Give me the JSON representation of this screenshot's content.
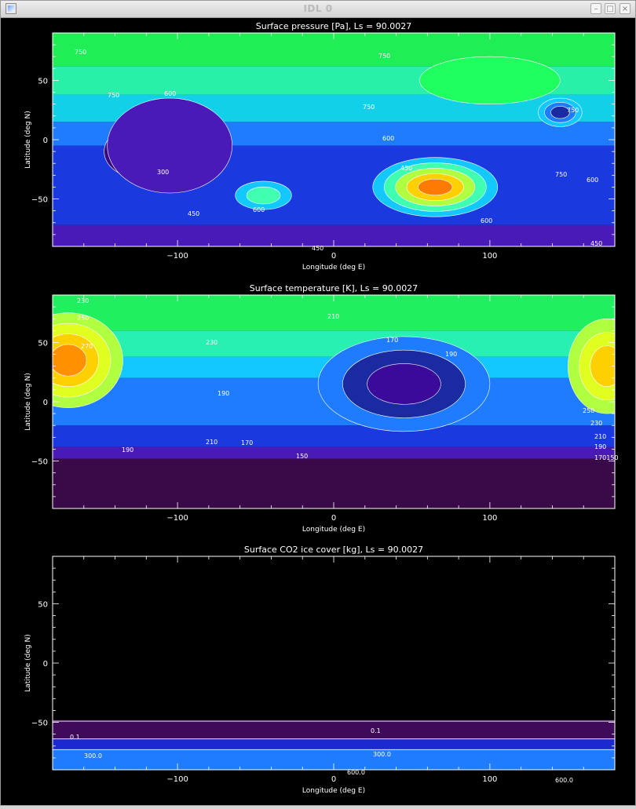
{
  "window": {
    "title": "IDL 0",
    "buttons": {
      "minimize": "–",
      "maximize": "□",
      "close": "×"
    }
  },
  "chart_data": [
    {
      "type": "contour",
      "title": "Surface pressure [Pa], Ls =      90.0027",
      "xlabel": "Longitude (deg E)",
      "ylabel": "Latitude (deg N)",
      "xlim": [
        -180,
        180
      ],
      "ylim": [
        -90,
        90
      ],
      "xticks": [
        -100,
        0,
        100
      ],
      "yticks": [
        50,
        0,
        -50
      ],
      "contour_labels": [
        "750",
        "750",
        "750",
        "750",
        "600",
        "750",
        "750",
        "600",
        "600",
        "600",
        "450",
        "300",
        "450",
        "600",
        "450",
        "450"
      ],
      "features": [
        {
          "kind": "blob",
          "lon": -125,
          "lat": -10,
          "rx": 22,
          "ry": 22,
          "levels": [
            "#3a0a7a",
            "#1f0f5c"
          ]
        },
        {
          "kind": "blob",
          "lon": -105,
          "lat": -5,
          "rx": 40,
          "ry": 40,
          "levels": [
            "#4a1ab8"
          ]
        },
        {
          "kind": "blob",
          "lon": 65,
          "lat": -40,
          "rx": 40,
          "ry": 25,
          "levels": [
            "#12c8ff",
            "#40ffb0",
            "#b0ff40",
            "#ffd000",
            "#ff7a00"
          ]
        },
        {
          "kind": "blob",
          "lon": -45,
          "lat": -47,
          "rx": 18,
          "ry": 12,
          "levels": [
            "#12c8ff",
            "#40ffb0"
          ]
        },
        {
          "kind": "blob",
          "lon": 145,
          "lat": 23,
          "rx": 14,
          "ry": 12,
          "levels": [
            "#12c8ff",
            "#1f7cff",
            "#1a2aa0"
          ]
        },
        {
          "kind": "blob",
          "lon": 100,
          "lat": 50,
          "rx": 45,
          "ry": 20,
          "levels": [
            "#20ff60"
          ]
        }
      ]
    },
    {
      "type": "contour",
      "title": "Surface temperature [K], Ls =      90.0027",
      "xlabel": "Longitude (deg E)",
      "ylabel": "Latitude (deg N)",
      "xlim": [
        -180,
        180
      ],
      "ylim": [
        -90,
        90
      ],
      "xticks": [
        -100,
        0,
        100
      ],
      "yticks": [
        50,
        0,
        -50
      ],
      "contour_labels": [
        "230",
        "250",
        "270",
        "230",
        "210",
        "190",
        "170",
        "190",
        "210",
        "190",
        "170",
        "150",
        "250",
        "230",
        "210",
        "190",
        "170150"
      ],
      "features": [
        {
          "kind": "blob",
          "lon": -170,
          "lat": 35,
          "rx": 35,
          "ry": 40,
          "levels": [
            "#b0ff40",
            "#e0ff20",
            "#ffd000",
            "#ff9000"
          ]
        },
        {
          "kind": "blob",
          "lon": 175,
          "lat": 30,
          "rx": 25,
          "ry": 40,
          "levels": [
            "#b0ff40",
            "#e0ff20",
            "#ffd000"
          ]
        },
        {
          "kind": "blob",
          "lon": 45,
          "lat": 15,
          "rx": 55,
          "ry": 40,
          "levels": [
            "#1f7cff",
            "#1a2aa0",
            "#3a0a9a"
          ]
        }
      ]
    },
    {
      "type": "contour",
      "title": "Surface CO2 ice cover [kg], Ls =      90.0027",
      "xlabel": "Longitude (deg E)",
      "ylabel": "Latitude (deg N)",
      "xlim": [
        -180,
        180
      ],
      "ylim": [
        -90,
        90
      ],
      "xticks": [
        -100,
        0,
        100
      ],
      "yticks": [
        50,
        0,
        -50
      ],
      "contour_labels": [
        "0.1",
        "0.1",
        "300.0",
        "300.0",
        "600.0",
        "600.0"
      ],
      "bands": [
        {
          "lat_top": -48,
          "lat_bot": -64,
          "color": "#400a5a"
        },
        {
          "lat_top": -64,
          "lat_bot": -73,
          "color": "#1a2ad0"
        },
        {
          "lat_top": -73,
          "lat_bot": -90,
          "color": "#1f7cff"
        }
      ]
    }
  ]
}
